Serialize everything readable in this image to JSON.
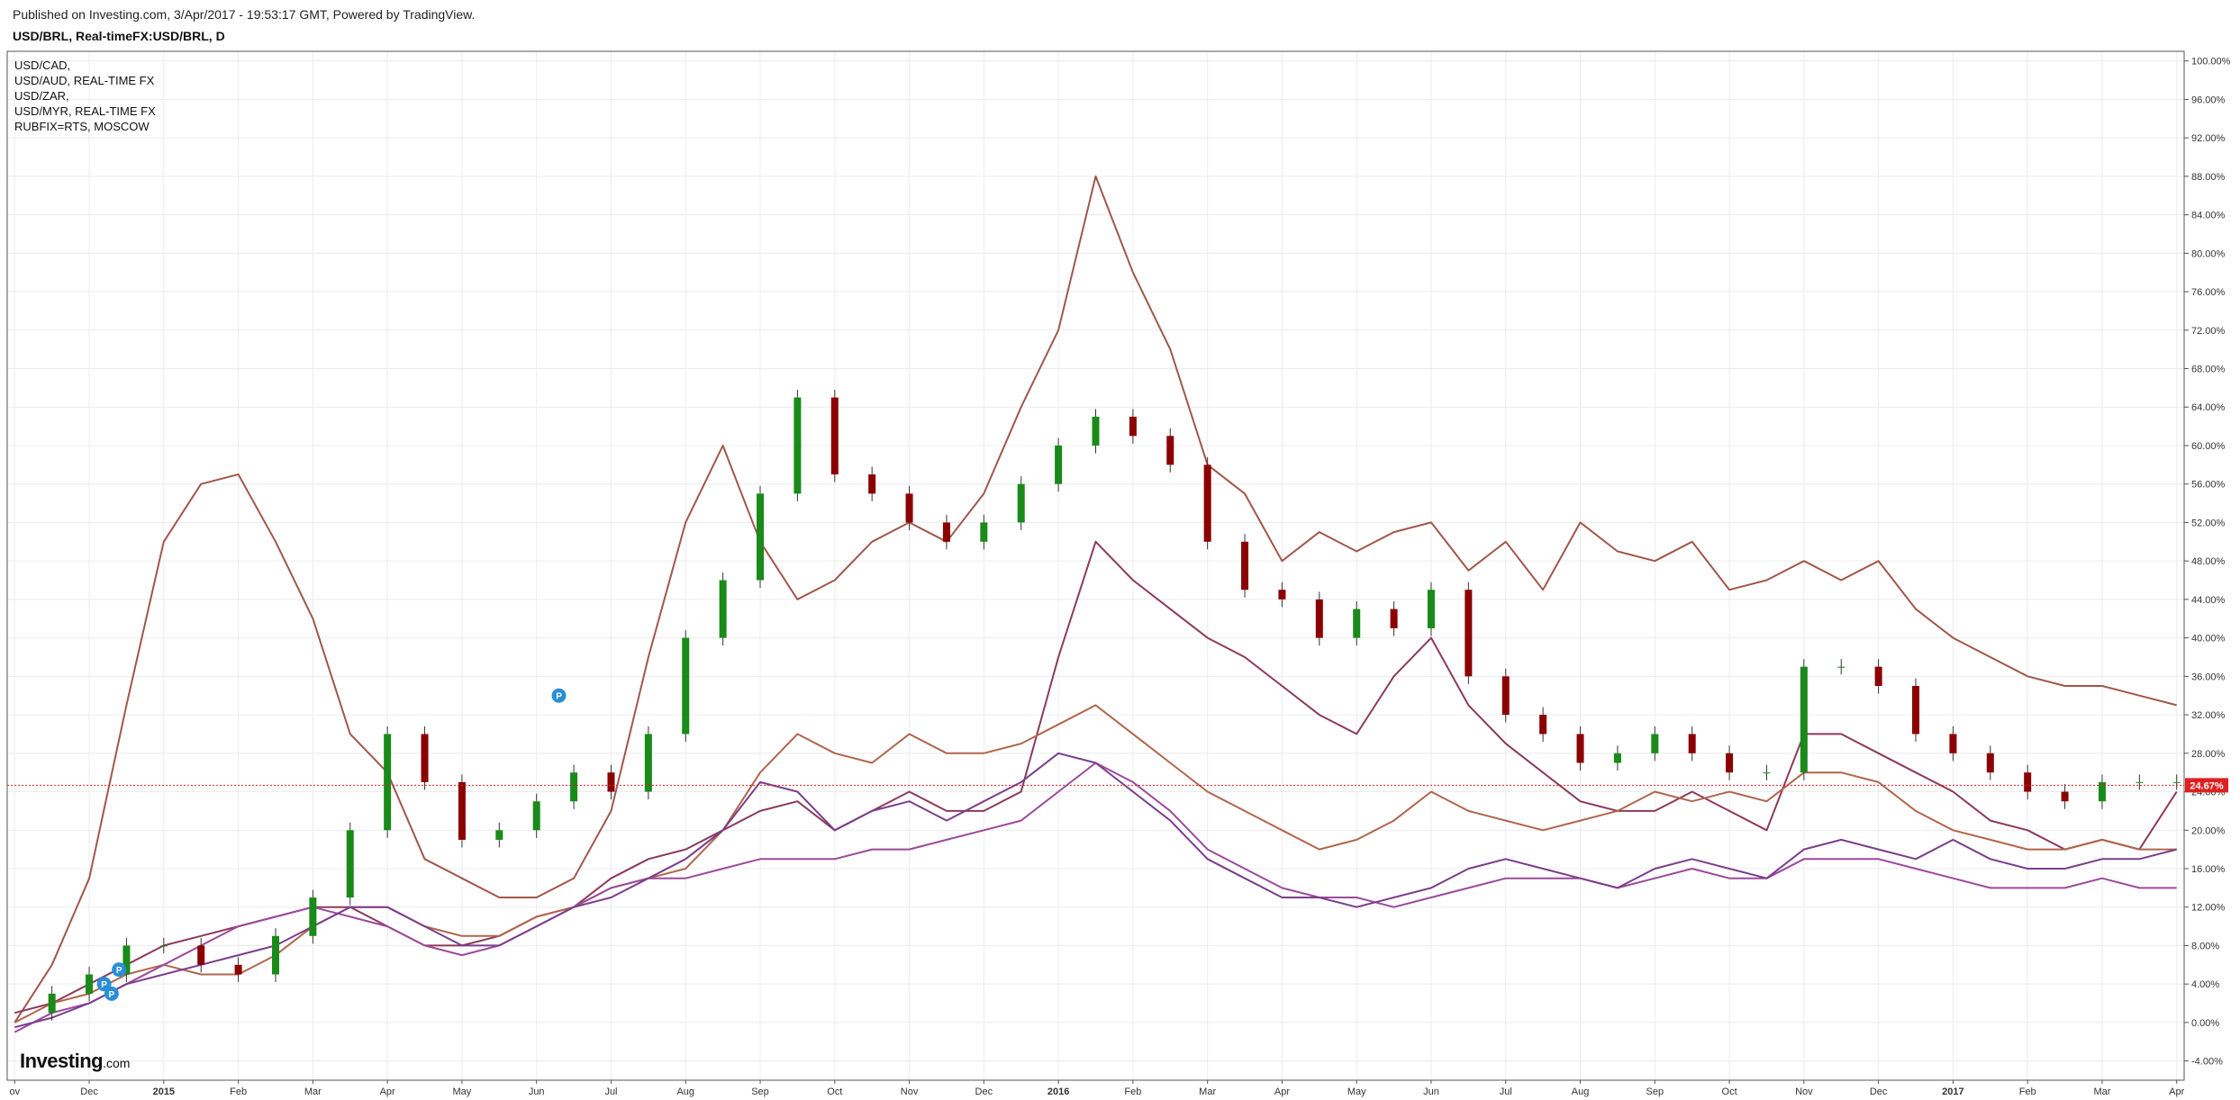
{
  "header": {
    "published": "Published on Investing.com, 3/Apr/2017 - 19:53:17 GMT, Powered by TradingView.",
    "symbol": "USD/BRL, Real-timeFX:USD/BRL, D"
  },
  "legend": {
    "items": [
      "USD/CAD,",
      "USD/AUD, REAL-TIME FX",
      "USD/ZAR,",
      "USD/MYR, REAL-TIME FX",
      "RUBFIX=RTS, MOSCOW"
    ]
  },
  "logo": {
    "brand": "Investing",
    "suffix": ".com"
  },
  "chart_data": {
    "type": "line",
    "title": "USD/BRL, Real-timeFX:USD/BRL, D",
    "y_unit": "%",
    "ylim": [
      -6,
      101
    ],
    "y_ticks": [
      "100.00%",
      "96.00%",
      "92.00%",
      "88.00%",
      "84.00%",
      "80.00%",
      "76.00%",
      "72.00%",
      "68.00%",
      "64.00%",
      "60.00%",
      "56.00%",
      "52.00%",
      "48.00%",
      "44.00%",
      "40.00%",
      "36.00%",
      "32.00%",
      "28.00%",
      "24.00%",
      "20.00%",
      "16.00%",
      "12.00%",
      "8.00%",
      "4.00%",
      "0.00%",
      "-4.00%"
    ],
    "x_ticks": [
      {
        "label": "ov",
        "x": 0,
        "bold": false
      },
      {
        "label": "Dec",
        "x": 1,
        "bold": false
      },
      {
        "label": "2015",
        "x": 2,
        "bold": true
      },
      {
        "label": "Feb",
        "x": 3,
        "bold": false
      },
      {
        "label": "Mar",
        "x": 4,
        "bold": false
      },
      {
        "label": "Apr",
        "x": 5,
        "bold": false
      },
      {
        "label": "May",
        "x": 6,
        "bold": false
      },
      {
        "label": "Jun",
        "x": 7,
        "bold": false
      },
      {
        "label": "Jul",
        "x": 8,
        "bold": false
      },
      {
        "label": "Aug",
        "x": 9,
        "bold": false
      },
      {
        "label": "Sep",
        "x": 10,
        "bold": false
      },
      {
        "label": "Oct",
        "x": 11,
        "bold": false
      },
      {
        "label": "Nov",
        "x": 12,
        "bold": false
      },
      {
        "label": "Dec",
        "x": 13,
        "bold": false
      },
      {
        "label": "2016",
        "x": 14,
        "bold": true
      },
      {
        "label": "Feb",
        "x": 15,
        "bold": false
      },
      {
        "label": "Mar",
        "x": 16,
        "bold": false
      },
      {
        "label": "Apr",
        "x": 17,
        "bold": false
      },
      {
        "label": "May",
        "x": 18,
        "bold": false
      },
      {
        "label": "Jun",
        "x": 19,
        "bold": false
      },
      {
        "label": "Jul",
        "x": 20,
        "bold": false
      },
      {
        "label": "Aug",
        "x": 21,
        "bold": false
      },
      {
        "label": "Sep",
        "x": 22,
        "bold": false
      },
      {
        "label": "Oct",
        "x": 23,
        "bold": false
      },
      {
        "label": "Nov",
        "x": 24,
        "bold": false
      },
      {
        "label": "Dec",
        "x": 25,
        "bold": false
      },
      {
        "label": "2017",
        "x": 26,
        "bold": true
      },
      {
        "label": "Feb",
        "x": 27,
        "bold": false
      },
      {
        "label": "Mar",
        "x": 28,
        "bold": false
      },
      {
        "label": "Apr",
        "x": 29,
        "bold": false
      }
    ],
    "xlim": [
      -0.1,
      29.1
    ],
    "last_value_label": "24.67%",
    "last_value": 24.67,
    "candles": {
      "name": "USD/BRL",
      "up_color": "#1a8a1a",
      "down_color": "#8b0000",
      "x": [
        0,
        0.5,
        1,
        1.5,
        2,
        2.5,
        3,
        3.5,
        4,
        4.5,
        5,
        5.5,
        6,
        6.5,
        7,
        7.5,
        8,
        8.5,
        9,
        9.5,
        10,
        10.5,
        11,
        11.5,
        12,
        12.5,
        13,
        13.5,
        14,
        14.5,
        15,
        15.5,
        16,
        16.5,
        17,
        17.5,
        18,
        18.5,
        19,
        19.5,
        20,
        20.5,
        21,
        21.5,
        22,
        22.5,
        23,
        23.5,
        24,
        24.5,
        25,
        25.5,
        26,
        26.5,
        27,
        27.5,
        28,
        28.5,
        29
      ],
      "y": [
        1,
        3,
        5,
        8,
        8,
        6,
        5,
        9,
        13,
        20,
        30,
        25,
        19,
        20,
        23,
        26,
        24,
        30,
        40,
        46,
        55,
        65,
        57,
        55,
        52,
        50,
        52,
        56,
        60,
        63,
        61,
        58,
        50,
        45,
        44,
        40,
        43,
        41,
        45,
        36,
        32,
        30,
        27,
        28,
        30,
        28,
        26,
        26,
        37,
        37,
        35,
        30,
        28,
        26,
        24,
        23,
        25,
        25,
        25
      ]
    },
    "series": [
      {
        "name": "USD/CAD",
        "color": "#a0574a",
        "x": [
          0,
          0.5,
          1,
          1.5,
          2,
          2.5,
          3,
          3.5,
          4,
          4.5,
          5,
          5.5,
          6,
          6.5,
          7,
          7.5,
          8,
          8.5,
          9,
          9.5,
          10,
          10.5,
          11,
          11.5,
          12,
          12.5,
          13,
          13.5,
          14,
          14.5,
          15,
          15.5,
          16,
          16.5,
          17,
          17.5,
          18,
          18.5,
          19,
          19.5,
          20,
          20.5,
          21,
          21.5,
          22,
          22.5,
          23,
          23.5,
          24,
          24.5,
          25,
          25.5,
          26,
          26.5,
          27,
          27.5,
          28,
          28.5,
          29
        ],
        "values": [
          0,
          6,
          15,
          33,
          50,
          56,
          57,
          50,
          42,
          30,
          26,
          17,
          15,
          13,
          13,
          15,
          22,
          38,
          52,
          60,
          50,
          44,
          46,
          50,
          52,
          50,
          55,
          64,
          72,
          88,
          78,
          70,
          58,
          55,
          48,
          51,
          49,
          51,
          52,
          47,
          50,
          45,
          52,
          49,
          48,
          50,
          45,
          46,
          48,
          46,
          48,
          43,
          40,
          38,
          36,
          35,
          35,
          34,
          33
        ]
      },
      {
        "name": "USD/AUD",
        "color": "#8c3a5a",
        "x": [
          0,
          0.5,
          1,
          1.5,
          2,
          2.5,
          3,
          3.5,
          4,
          4.5,
          5,
          5.5,
          6,
          6.5,
          7,
          7.5,
          8,
          8.5,
          9,
          9.5,
          10,
          10.5,
          11,
          11.5,
          12,
          12.5,
          13,
          13.5,
          14,
          14.5,
          15,
          15.5,
          16,
          16.5,
          17,
          17.5,
          18,
          18.5,
          19,
          19.5,
          20,
          20.5,
          21,
          21.5,
          22,
          22.5,
          23,
          23.5,
          24,
          24.5,
          25,
          25.5,
          26,
          26.5,
          27,
          27.5,
          28,
          28.5,
          29
        ],
        "values": [
          1,
          2,
          4,
          6,
          8,
          9,
          10,
          11,
          12,
          12,
          10,
          8,
          8,
          9,
          11,
          12,
          15,
          17,
          18,
          20,
          22,
          23,
          20,
          22,
          24,
          22,
          22,
          24,
          38,
          50,
          46,
          43,
          40,
          38,
          35,
          32,
          30,
          36,
          40,
          33,
          29,
          26,
          23,
          22,
          22,
          24,
          22,
          20,
          30,
          30,
          28,
          26,
          24,
          21,
          20,
          18,
          19,
          18,
          24
        ]
      },
      {
        "name": "USD/ZAR",
        "color": "#b0664e",
        "x": [
          0,
          0.5,
          1,
          1.5,
          2,
          2.5,
          3,
          3.5,
          4,
          4.5,
          5,
          5.5,
          6,
          6.5,
          7,
          7.5,
          8,
          8.5,
          9,
          9.5,
          10,
          10.5,
          11,
          11.5,
          12,
          12.5,
          13,
          13.5,
          14,
          14.5,
          15,
          15.5,
          16,
          16.5,
          17,
          17.5,
          18,
          18.5,
          19,
          19.5,
          20,
          20.5,
          21,
          21.5,
          22,
          22.5,
          23,
          23.5,
          24,
          24.5,
          25,
          25.5,
          26,
          26.5,
          27,
          27.5,
          28,
          28.5,
          29
        ],
        "values": [
          0,
          2,
          3,
          5,
          6,
          5,
          5,
          7,
          10,
          12,
          12,
          10,
          9,
          9,
          11,
          12,
          14,
          15,
          16,
          20,
          26,
          30,
          28,
          27,
          30,
          28,
          28,
          29,
          31,
          33,
          30,
          27,
          24,
          22,
          20,
          18,
          19,
          21,
          24,
          22,
          21,
          20,
          21,
          22,
          24,
          23,
          24,
          23,
          26,
          26,
          25,
          22,
          20,
          19,
          18,
          18,
          19,
          18,
          18
        ]
      },
      {
        "name": "USD/MYR",
        "color": "#9b4a9b",
        "x": [
          0,
          0.5,
          1,
          1.5,
          2,
          2.5,
          3,
          3.5,
          4,
          4.5,
          5,
          5.5,
          6,
          6.5,
          7,
          7.5,
          8,
          8.5,
          9,
          9.5,
          10,
          10.5,
          11,
          11.5,
          12,
          12.5,
          13,
          13.5,
          14,
          14.5,
          15,
          15.5,
          16,
          16.5,
          17,
          17.5,
          18,
          18.5,
          19,
          19.5,
          20,
          20.5,
          21,
          21.5,
          22,
          22.5,
          23,
          23.5,
          24,
          24.5,
          25,
          25.5,
          26,
          26.5,
          27,
          27.5,
          28,
          28.5,
          29
        ],
        "values": [
          -1,
          1,
          2,
          4,
          6,
          8,
          10,
          11,
          12,
          11,
          10,
          8,
          7,
          8,
          10,
          12,
          14,
          15,
          15,
          16,
          17,
          17,
          17,
          18,
          18,
          19,
          20,
          21,
          24,
          27,
          25,
          22,
          18,
          16,
          14,
          13,
          13,
          12,
          13,
          14,
          15,
          15,
          15,
          14,
          15,
          16,
          15,
          15,
          17,
          17,
          17,
          16,
          15,
          14,
          14,
          14,
          15,
          14,
          14
        ]
      },
      {
        "name": "RUBFIX=RTS, MOSCOW",
        "color": "#7a3e8a",
        "x": [
          0,
          0.5,
          1,
          1.5,
          2,
          2.5,
          3,
          3.5,
          4,
          4.5,
          5,
          5.5,
          6,
          6.5,
          7,
          7.5,
          8,
          8.5,
          9,
          9.5,
          10,
          10.5,
          11,
          11.5,
          12,
          12.5,
          13,
          13.5,
          14,
          14.5,
          15,
          15.5,
          16,
          16.5,
          17,
          17.5,
          18,
          18.5,
          19,
          19.5,
          20,
          20.5,
          21,
          21.5,
          22,
          22.5,
          23,
          23.5,
          24,
          24.5,
          25,
          25.5,
          26,
          26.5,
          27,
          27.5,
          28,
          28.5,
          29
        ],
        "values": [
          -0.5,
          0.5,
          2,
          4,
          5,
          6,
          7,
          8,
          10,
          12,
          12,
          10,
          8,
          8,
          10,
          12,
          13,
          15,
          17,
          20,
          25,
          24,
          20,
          22,
          23,
          21,
          23,
          25,
          28,
          27,
          24,
          21,
          17,
          15,
          13,
          13,
          12,
          13,
          14,
          16,
          17,
          16,
          15,
          14,
          16,
          17,
          16,
          15,
          18,
          19,
          18,
          17,
          19,
          17,
          16,
          16,
          17,
          17,
          18
        ]
      }
    ],
    "grid": true,
    "legend_position": "top-left"
  }
}
